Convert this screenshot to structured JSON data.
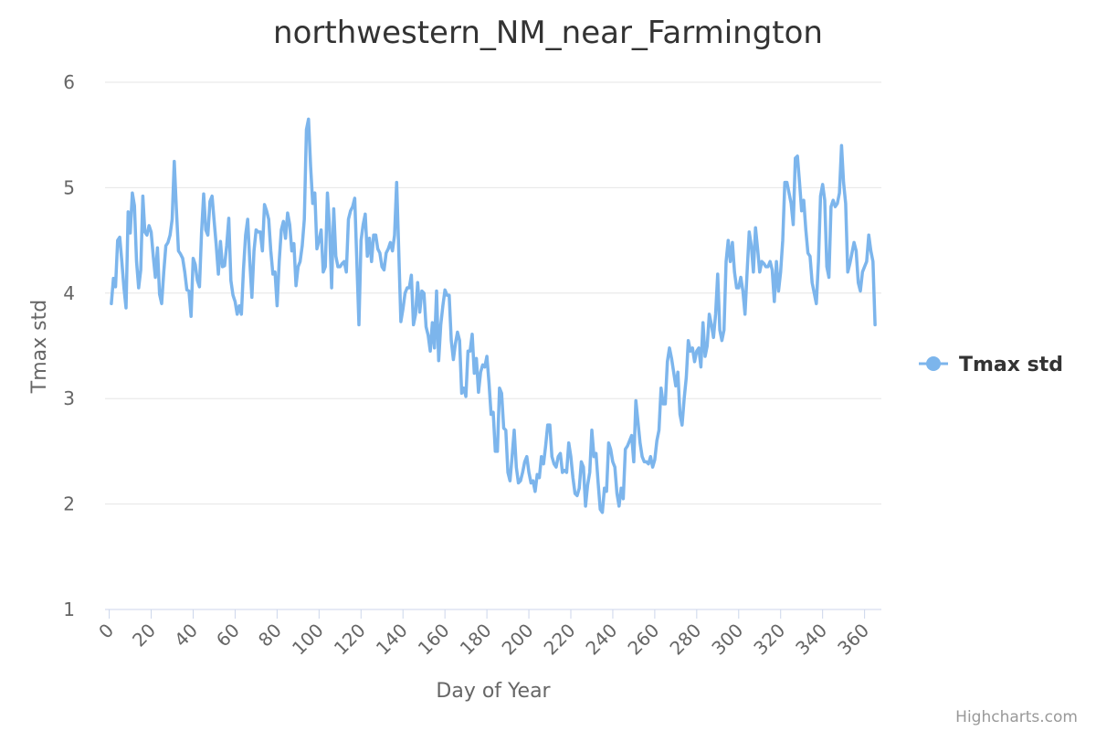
{
  "chart_data": {
    "type": "line",
    "title": "northwestern_NM_near_Farmington",
    "xlabel": "Day of Year",
    "ylabel": "Tmax std",
    "xlim": [
      -2,
      368
    ],
    "ylim": [
      1,
      6
    ],
    "x_ticks": [
      "0",
      "20",
      "40",
      "60",
      "80",
      "100",
      "120",
      "140",
      "160",
      "180",
      "200",
      "220",
      "240",
      "260",
      "280",
      "300",
      "320",
      "340",
      "360"
    ],
    "y_ticks": [
      "1",
      "2",
      "3",
      "4",
      "5",
      "6"
    ],
    "grid": "horizontal",
    "legend_position": "right",
    "series": [
      {
        "name": "Tmax std",
        "color": "#7cb5ec",
        "x_start": 1,
        "x_step": 1,
        "values": [
          3.9,
          4.14,
          4.06,
          4.5,
          4.53,
          4.3,
          4.05,
          3.86,
          4.77,
          4.57,
          4.95,
          4.83,
          4.3,
          4.05,
          4.22,
          4.92,
          4.58,
          4.55,
          4.64,
          4.58,
          4.35,
          4.15,
          4.43,
          3.99,
          3.9,
          4.2,
          4.45,
          4.48,
          4.55,
          4.7,
          5.25,
          4.8,
          4.4,
          4.37,
          4.33,
          4.2,
          4.03,
          4.02,
          3.78,
          4.33,
          4.27,
          4.12,
          4.06,
          4.58,
          4.94,
          4.6,
          4.55,
          4.87,
          4.92,
          4.68,
          4.45,
          4.18,
          4.49,
          4.25,
          4.26,
          4.45,
          4.71,
          4.12,
          3.98,
          3.92,
          3.8,
          3.88,
          3.8,
          4.23,
          4.55,
          4.7,
          4.3,
          3.96,
          4.4,
          4.6,
          4.58,
          4.58,
          4.4,
          4.84,
          4.78,
          4.7,
          4.4,
          4.18,
          4.2,
          3.88,
          4.3,
          4.6,
          4.68,
          4.52,
          4.76,
          4.65,
          4.4,
          4.47,
          4.07,
          4.25,
          4.3,
          4.45,
          4.7,
          5.55,
          5.65,
          5.2,
          4.85,
          4.95,
          4.42,
          4.5,
          4.6,
          4.2,
          4.25,
          4.95,
          4.62,
          4.05,
          4.8,
          4.35,
          4.25,
          4.25,
          4.28,
          4.3,
          4.2,
          4.7,
          4.78,
          4.82,
          4.9,
          4.3,
          3.7,
          4.5,
          4.65,
          4.75,
          4.35,
          4.52,
          4.3,
          4.55,
          4.55,
          4.42,
          4.38,
          4.25,
          4.22,
          4.38,
          4.42,
          4.48,
          4.4,
          4.55,
          5.05,
          4.4,
          3.73,
          3.85,
          4.0,
          4.05,
          4.05,
          4.17,
          3.7,
          3.8,
          4.1,
          3.82,
          4.02,
          4.0,
          3.68,
          3.6,
          3.45,
          3.72,
          3.48,
          4.02,
          3.36,
          3.7,
          3.88,
          4.03,
          3.98,
          3.98,
          3.55,
          3.37,
          3.52,
          3.63,
          3.55,
          3.05,
          3.1,
          3.02,
          3.45,
          3.45,
          3.61,
          3.24,
          3.38,
          3.06,
          3.25,
          3.32,
          3.3,
          3.4,
          3.15,
          2.85,
          2.87,
          2.5,
          2.5,
          3.1,
          3.05,
          2.72,
          2.7,
          2.3,
          2.22,
          2.45,
          2.7,
          2.35,
          2.2,
          2.22,
          2.3,
          2.4,
          2.45,
          2.3,
          2.2,
          2.22,
          2.12,
          2.28,
          2.25,
          2.45,
          2.38,
          2.55,
          2.75,
          2.75,
          2.45,
          2.38,
          2.35,
          2.45,
          2.48,
          2.3,
          2.32,
          2.3,
          2.58,
          2.45,
          2.25,
          2.1,
          2.08,
          2.15,
          2.4,
          2.35,
          1.98,
          2.18,
          2.3,
          2.7,
          2.45,
          2.48,
          2.2,
          1.95,
          1.92,
          2.15,
          2.12,
          2.58,
          2.52,
          2.4,
          2.35,
          2.1,
          1.98,
          2.15,
          2.05,
          2.52,
          2.55,
          2.6,
          2.65,
          2.4,
          2.98,
          2.78,
          2.58,
          2.45,
          2.4,
          2.4,
          2.38,
          2.45,
          2.35,
          2.42,
          2.6,
          2.7,
          3.1,
          2.95,
          2.95,
          3.35,
          3.48,
          3.38,
          3.25,
          3.12,
          3.25,
          2.85,
          2.75,
          3.0,
          3.2,
          3.55,
          3.45,
          3.48,
          3.35,
          3.45,
          3.48,
          3.3,
          3.72,
          3.4,
          3.5,
          3.8,
          3.7,
          3.58,
          3.8,
          4.18,
          3.65,
          3.55,
          3.65,
          4.3,
          4.5,
          4.3,
          4.48,
          4.2,
          4.05,
          4.05,
          4.15,
          4.02,
          3.8,
          4.2,
          4.58,
          4.45,
          4.2,
          4.62,
          4.42,
          4.2,
          4.3,
          4.28,
          4.25,
          4.25,
          4.3,
          4.22,
          3.92,
          4.3,
          4.02,
          4.2,
          4.5,
          5.05,
          5.05,
          4.95,
          4.85,
          4.65,
          5.28,
          5.3,
          5.05,
          4.78,
          4.88,
          4.6,
          4.38,
          4.35,
          4.1,
          4.0,
          3.9,
          4.3,
          4.92,
          5.03,
          4.88,
          4.25,
          4.15,
          4.82,
          4.88,
          4.82,
          4.85,
          4.95,
          5.4,
          5.05,
          4.85,
          4.2,
          4.28,
          4.38,
          4.48,
          4.4,
          4.1,
          4.02,
          4.2,
          4.25,
          4.3,
          4.55,
          4.4,
          4.3,
          3.7
        ]
      }
    ]
  },
  "credits": "Highcharts.com"
}
